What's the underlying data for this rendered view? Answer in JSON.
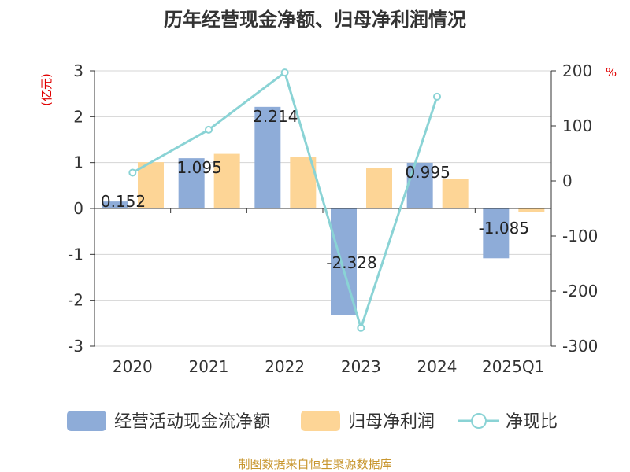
{
  "chart_data": {
    "type": "bar+line",
    "title": "历年经营现金净额、归母净利润情况",
    "categories": [
      "2020",
      "2021",
      "2022",
      "2023",
      "2024",
      "2025Q1"
    ],
    "series": [
      {
        "name": "经营活动现金流净额",
        "type": "bar",
        "axis": "left",
        "values": [
          0.152,
          1.095,
          2.214,
          -2.328,
          0.995,
          -1.085
        ],
        "color": "#8eacd8"
      },
      {
        "name": "归母净利润",
        "type": "bar",
        "axis": "left",
        "values": [
          1.01,
          1.19,
          1.13,
          0.88,
          0.65,
          -0.07
        ],
        "color": "#fdd596"
      },
      {
        "name": "净现比",
        "type": "line",
        "axis": "right",
        "values": [
          15,
          93,
          197,
          -267,
          153,
          null
        ],
        "color": "#8ad3d5"
      }
    ],
    "data_labels": [
      "0.152",
      "1.095",
      "2.214",
      "-2.328",
      "0.995",
      "-1.085"
    ],
    "y_left": {
      "label": "(亿元)",
      "min": -3,
      "max": 3,
      "ticks": [
        "3",
        "2",
        "1",
        "0",
        "-1",
        "-2",
        "-3"
      ]
    },
    "y_right": {
      "label": "%",
      "min": -300,
      "max": 200,
      "ticks": [
        "200",
        "100",
        "0",
        "-100",
        "-200",
        "-300"
      ]
    },
    "legend": {
      "position": "bottom"
    },
    "source": "制图数据来自恒生聚源数据库"
  }
}
